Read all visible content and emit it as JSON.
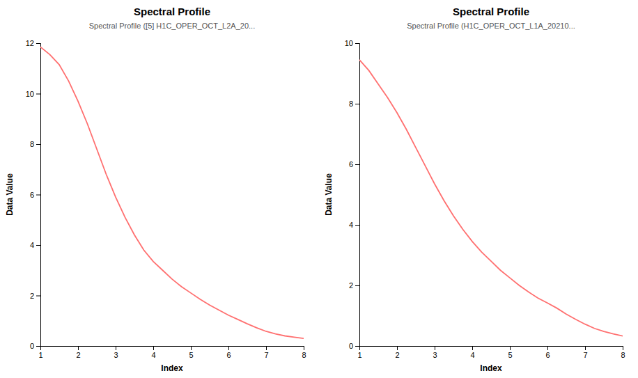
{
  "chart_data": [
    {
      "type": "line",
      "title": "Spectral Profile",
      "subtitle": "Spectral Profile ([5] H1C_OPER_OCT_L2A_20...",
      "xlabel": "Index",
      "ylabel": "Data Value",
      "x": [
        1.0,
        1.25,
        1.5,
        1.75,
        2.0,
        2.25,
        2.5,
        2.75,
        3.0,
        3.25,
        3.5,
        3.75,
        4.0,
        4.25,
        4.5,
        4.75,
        5.0,
        5.25,
        5.5,
        5.75,
        6.0,
        6.25,
        6.5,
        6.75,
        7.0,
        7.25,
        7.5,
        7.75,
        8.0
      ],
      "values": [
        11.85,
        11.55,
        11.15,
        10.5,
        9.7,
        8.8,
        7.8,
        6.8,
        5.9,
        5.1,
        4.4,
        3.8,
        3.35,
        3.0,
        2.65,
        2.35,
        2.1,
        1.85,
        1.62,
        1.42,
        1.22,
        1.05,
        0.88,
        0.72,
        0.58,
        0.48,
        0.4,
        0.35,
        0.3
      ],
      "color": "#FF7070",
      "xlim": [
        1,
        8
      ],
      "xticks": [
        1,
        2,
        3,
        4,
        5,
        6,
        7,
        8
      ],
      "ylim": [
        0,
        12
      ],
      "yticks": [
        0,
        2,
        4,
        6,
        8,
        10,
        12
      ],
      "grid": false
    },
    {
      "type": "line",
      "title": "Spectral Profile",
      "subtitle": "Spectral Profile (H1C_OPER_OCT_L1A_20210...",
      "xlabel": "Index",
      "ylabel": "Data Value",
      "x": [
        1.0,
        1.25,
        1.5,
        1.75,
        2.0,
        2.25,
        2.5,
        2.75,
        3.0,
        3.25,
        3.5,
        3.75,
        4.0,
        4.25,
        4.5,
        4.75,
        5.0,
        5.25,
        5.5,
        5.75,
        6.0,
        6.25,
        6.5,
        6.75,
        7.0,
        7.25,
        7.5,
        7.75,
        8.0
      ],
      "values": [
        9.45,
        9.1,
        8.65,
        8.2,
        7.7,
        7.15,
        6.55,
        5.95,
        5.35,
        4.8,
        4.3,
        3.85,
        3.45,
        3.1,
        2.8,
        2.5,
        2.25,
        2.0,
        1.78,
        1.58,
        1.42,
        1.25,
        1.05,
        0.88,
        0.72,
        0.58,
        0.48,
        0.4,
        0.33
      ],
      "color": "#FF7070",
      "xlim": [
        1,
        8
      ],
      "xticks": [
        1,
        2,
        3,
        4,
        5,
        6,
        7,
        8
      ],
      "ylim": [
        0,
        10
      ],
      "yticks": [
        0,
        2,
        4,
        6,
        8,
        10
      ],
      "grid": false
    }
  ]
}
